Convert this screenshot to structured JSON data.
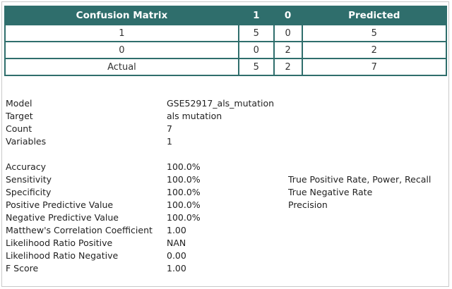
{
  "matrix": {
    "headers": [
      "Confusion Matrix",
      "1",
      "0",
      "Predicted"
    ],
    "rows": [
      [
        "1",
        "5",
        "0",
        "5"
      ],
      [
        "0",
        "0",
        "2",
        "2"
      ],
      [
        "Actual",
        "5",
        "2",
        "7"
      ]
    ]
  },
  "model_info": [
    {
      "label": "Model",
      "value": "GSE52917_als_mutation"
    },
    {
      "label": "Target",
      "value": "als mutation"
    },
    {
      "label": "Count",
      "value": "7"
    },
    {
      "label": "Variables",
      "value": "1"
    }
  ],
  "metrics": [
    {
      "label": "Accuracy",
      "value": "100.0%",
      "note": ""
    },
    {
      "label": "Sensitivity",
      "value": "100.0%",
      "note": "True Positive Rate, Power, Recall"
    },
    {
      "label": "Specificity",
      "value": "100.0%",
      "note": "True Negative Rate"
    },
    {
      "label": "Positive Predictive Value",
      "value": "100.0%",
      "note": "Precision"
    },
    {
      "label": "Negative Predictive Value",
      "value": "100.0%",
      "note": ""
    },
    {
      "label": "Matthew's Correlation Coefficient",
      "value": "1.00",
      "note": ""
    },
    {
      "label": "Likelihood Ratio Positive",
      "value": "NAN",
      "note": ""
    },
    {
      "label": "Likelihood Ratio Negative",
      "value": "0.00",
      "note": ""
    },
    {
      "label": "F Score",
      "value": "1.00",
      "note": ""
    }
  ]
}
